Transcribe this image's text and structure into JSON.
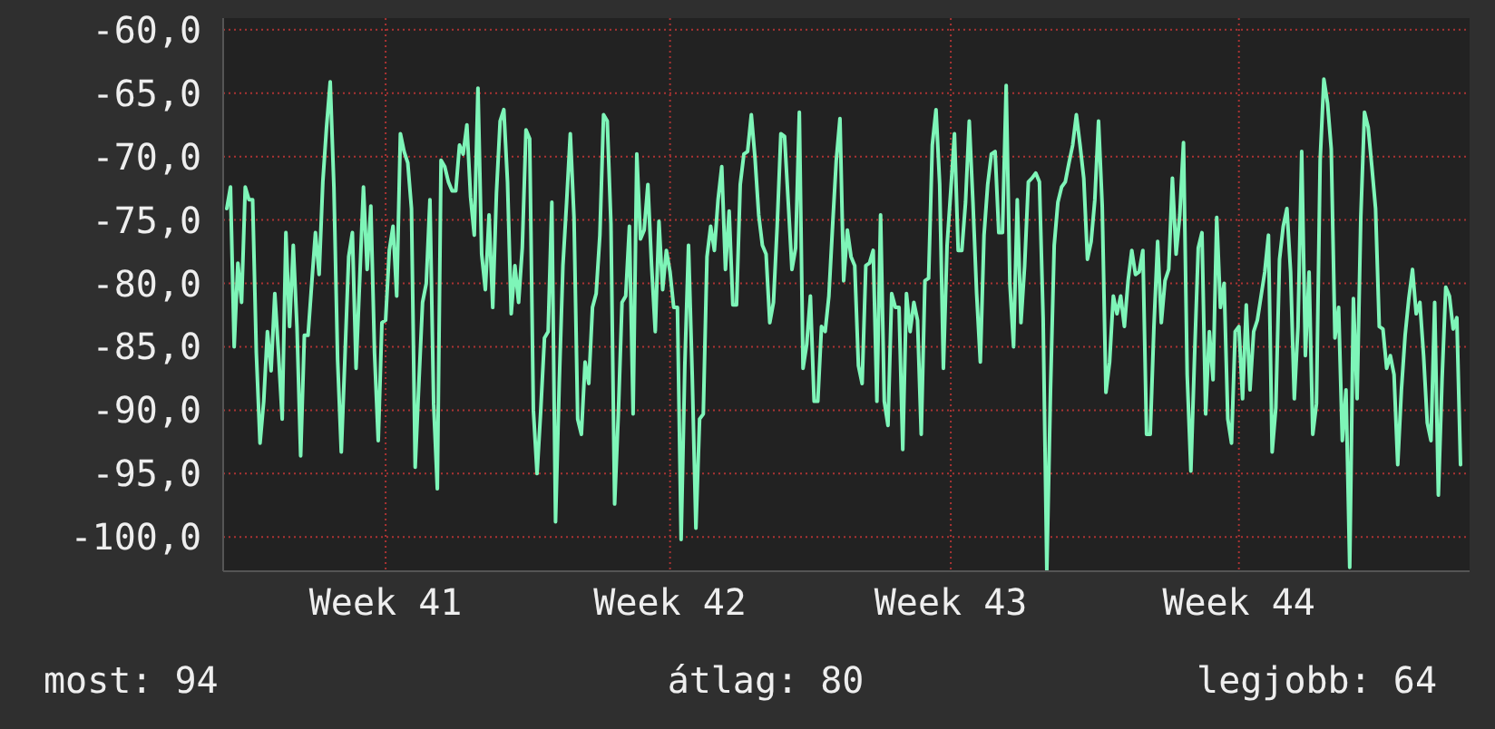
{
  "chart_data": {
    "type": "line",
    "categories": [
      null,
      null,
      null,
      null,
      null,
      null,
      null,
      null,
      null,
      null,
      null,
      null,
      null,
      null,
      null,
      null,
      null,
      null,
      null,
      null,
      null,
      null,
      null,
      null,
      null,
      null,
      null,
      null,
      null,
      null,
      null,
      null,
      null,
      null,
      null,
      null,
      null,
      null,
      null,
      null,
      null,
      null,
      null,
      "Week 41",
      null,
      null,
      null,
      null,
      null,
      null,
      null,
      null,
      null,
      null,
      null,
      null,
      null,
      null,
      null,
      null,
      null,
      null,
      null,
      null,
      null,
      null,
      null,
      null,
      null,
      null,
      null,
      null,
      null,
      null,
      null,
      null,
      null,
      null,
      null,
      null,
      null,
      null,
      null,
      null,
      null,
      null,
      null,
      null,
      null,
      null,
      null,
      null,
      null,
      null,
      null,
      null,
      null,
      null,
      null,
      null,
      null,
      null,
      null,
      null,
      null,
      null,
      null,
      null,
      null,
      null,
      null,
      null,
      null,
      null,
      null,
      null,
      null,
      null,
      null,
      null,
      "Week 42",
      null,
      null,
      null,
      null,
      null,
      null,
      null,
      null,
      null,
      null,
      null,
      null,
      null,
      null,
      null,
      null,
      null,
      null,
      null,
      null,
      null,
      null,
      null,
      null,
      null,
      null,
      null,
      null,
      null,
      null,
      null,
      null,
      null,
      null,
      null,
      null,
      null,
      null,
      null,
      null,
      null,
      null,
      null,
      null,
      null,
      null,
      null,
      null,
      null,
      null,
      null,
      null,
      null,
      null,
      null,
      null,
      null,
      null,
      null,
      null,
      null,
      null,
      null,
      null,
      null,
      null,
      null,
      null,
      null,
      null,
      null,
      null,
      null,
      null,
      null,
      "Week 43",
      null,
      null,
      null,
      null,
      null,
      null,
      null,
      null,
      null,
      null,
      null,
      null,
      null,
      null,
      null,
      null,
      null,
      null,
      null,
      null,
      null,
      null,
      null,
      null,
      null,
      null,
      null,
      null,
      null,
      null,
      null,
      null,
      null,
      null,
      null,
      null,
      null,
      null,
      null,
      null,
      null,
      null,
      null,
      null,
      null,
      null,
      null,
      null,
      null,
      null,
      null,
      null,
      null,
      null,
      null,
      null,
      null,
      null,
      null,
      null,
      null,
      null,
      null,
      null,
      null,
      null,
      null,
      null,
      null,
      null,
      null,
      null,
      null,
      null,
      null,
      null,
      null,
      "Week 44",
      null,
      null,
      null,
      null,
      null,
      null,
      null,
      null,
      null,
      null,
      null,
      null,
      null,
      null,
      null,
      null,
      null,
      null,
      null,
      null,
      null,
      null,
      null,
      null,
      null,
      null,
      null,
      null,
      null,
      null,
      null,
      null,
      null,
      null,
      null,
      null,
      null,
      null,
      null,
      null,
      null,
      null,
      null,
      null,
      null,
      null,
      null,
      null,
      null,
      null,
      null,
      null,
      null,
      null,
      null,
      null,
      null,
      null,
      null,
      null
    ],
    "series": [
      {
        "color": "#7ef5b8",
        "values": [
          -74.1,
          -72.4,
          -85.0,
          -78.4,
          -81.5,
          -72.4,
          -73.4,
          -73.4,
          -85.5,
          -92.6,
          -89.3,
          -83.8,
          -86.9,
          -80.8,
          -85.5,
          -90.7,
          -76.0,
          -83.4,
          -77.0,
          -83.4,
          -93.6,
          -84.1,
          -84.1,
          -80.0,
          -76.0,
          -79.3,
          -72.0,
          -67.7,
          -64.1,
          -72.4,
          -86.0,
          -93.3,
          -85.7,
          -77.9,
          -76.0,
          -86.7,
          -79.6,
          -72.4,
          -78.9,
          -73.9,
          -85.5,
          -92.4,
          -83.1,
          -82.9,
          -77.4,
          -75.5,
          -81.0,
          -68.2,
          -69.6,
          -70.5,
          -74.1,
          -94.5,
          -87.9,
          -81.5,
          -80.0,
          -73.4,
          -89.5,
          -96.2,
          -70.3,
          -70.8,
          -72.0,
          -72.7,
          -72.7,
          -69.1,
          -69.8,
          -67.5,
          -73.2,
          -76.2,
          -64.6,
          -77.7,
          -80.5,
          -74.6,
          -81.9,
          -72.9,
          -67.2,
          -66.3,
          -72.0,
          -82.4,
          -78.6,
          -81.5,
          -77.2,
          -67.9,
          -68.6,
          -90.0,
          -95.0,
          -90.0,
          -84.3,
          -83.8,
          -73.6,
          -98.8,
          -87.9,
          -78.6,
          -73.6,
          -68.2,
          -74.8,
          -90.7,
          -91.9,
          -86.2,
          -87.9,
          -81.9,
          -80.8,
          -76.2,
          -66.7,
          -67.2,
          -75.3,
          -97.4,
          -90.3,
          -81.5,
          -81.0,
          -75.5,
          -90.3,
          -69.8,
          -76.5,
          -75.8,
          -72.2,
          -78.6,
          -83.8,
          -75.1,
          -80.5,
          -77.4,
          -79.1,
          -81.9,
          -81.9,
          -100.2,
          -86.5,
          -77.0,
          -87.2,
          -99.3,
          -90.7,
          -90.3,
          -77.9,
          -75.5,
          -77.4,
          -73.4,
          -70.8,
          -78.9,
          -74.3,
          -81.7,
          -81.7,
          -72.2,
          -69.8,
          -69.6,
          -66.7,
          -70.1,
          -74.6,
          -77.0,
          -77.7,
          -83.1,
          -81.5,
          -75.5,
          -68.2,
          -68.4,
          -73.6,
          -78.9,
          -77.2,
          -66.5,
          -86.7,
          -84.8,
          -81.0,
          -89.3,
          -89.3,
          -83.4,
          -83.8,
          -81.0,
          -75.5,
          -70.3,
          -67.0,
          -79.8,
          -75.8,
          -77.9,
          -78.6,
          -86.5,
          -87.9,
          -78.6,
          -78.4,
          -77.4,
          -89.3,
          -74.6,
          -89.3,
          -91.2,
          -80.8,
          -81.9,
          -81.9,
          -93.1,
          -80.8,
          -83.8,
          -81.5,
          -82.9,
          -91.9,
          -79.8,
          -79.6,
          -69.1,
          -66.3,
          -72.2,
          -86.7,
          -77.0,
          -72.7,
          -68.2,
          -77.4,
          -77.4,
          -73.6,
          -67.2,
          -73.6,
          -80.8,
          -86.2,
          -76.2,
          -72.2,
          -69.8,
          -69.6,
          -76.0,
          -76.0,
          -64.4,
          -80.0,
          -85.0,
          -73.4,
          -83.1,
          -78.6,
          -72.0,
          -71.7,
          -71.3,
          -72.0,
          -82.7,
          -102.6,
          -88.4,
          -77.0,
          -73.6,
          -72.4,
          -72.0,
          -70.5,
          -69.1,
          -66.7,
          -69.1,
          -71.7,
          -78.1,
          -76.7,
          -73.4,
          -67.2,
          -73.9,
          -88.6,
          -86.2,
          -81.0,
          -82.4,
          -81.0,
          -83.4,
          -79.8,
          -77.4,
          -79.3,
          -79.1,
          -77.4,
          -91.9,
          -91.9,
          -83.4,
          -76.7,
          -83.1,
          -79.8,
          -78.9,
          -71.7,
          -77.7,
          -74.6,
          -68.9,
          -87.2,
          -94.8,
          -85.7,
          -77.2,
          -76.0,
          -90.3,
          -83.8,
          -87.6,
          -74.8,
          -81.9,
          -80.0,
          -90.7,
          -92.6,
          -83.8,
          -83.4,
          -89.1,
          -81.7,
          -88.4,
          -83.8,
          -82.9,
          -81.0,
          -79.1,
          -76.2,
          -93.3,
          -89.8,
          -78.1,
          -75.5,
          -74.1,
          -79.1,
          -89.1,
          -83.4,
          -69.6,
          -85.7,
          -79.1,
          -91.9,
          -89.5,
          -70.3,
          -63.9,
          -65.8,
          -69.4,
          -84.3,
          -81.9,
          -92.4,
          -88.4,
          -102.4,
          -81.2,
          -89.1,
          -74.8,
          -66.5,
          -67.7,
          -70.8,
          -74.1,
          -83.4,
          -83.6,
          -86.7,
          -85.7,
          -87.2,
          -94.3,
          -88.4,
          -84.1,
          -81.2,
          -78.9,
          -82.4,
          -81.5,
          -85.7,
          -91.0,
          -92.4,
          -81.5,
          -96.7,
          -87.6,
          -80.3,
          -81.0,
          -83.6,
          -82.7,
          -94.3
        ]
      }
    ],
    "ylim": [
      -102.7,
      -59.8
    ],
    "yticks": [
      {
        "value": -60,
        "label": "-60,0"
      },
      {
        "value": -65,
        "label": "-65,0"
      },
      {
        "value": -70,
        "label": "-70,0"
      },
      {
        "value": -75,
        "label": "-75,0"
      },
      {
        "value": -80,
        "label": "-80,0"
      },
      {
        "value": -85,
        "label": "-85,0"
      },
      {
        "value": -90,
        "label": "-90,0"
      },
      {
        "value": -95,
        "label": "-95,0"
      },
      {
        "value": -100,
        "label": "-100,0"
      }
    ],
    "grid": true,
    "annotations": [
      "most: 94",
      "átlag: 80",
      "legjobb: 64"
    ]
  }
}
